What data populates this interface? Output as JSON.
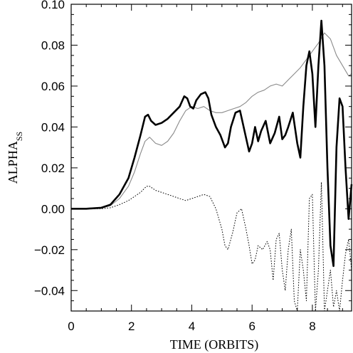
{
  "chart_data": {
    "type": "line",
    "xlabel": "TIME (ORBITS)",
    "ylabel_main": "ALPHA",
    "ylabel_sub": "SS",
    "xlim": [
      0,
      9.3
    ],
    "ylim": [
      -0.05,
      0.1
    ],
    "xticks": [
      0,
      2,
      4,
      6,
      8
    ],
    "xtick_labels": [
      "0",
      "2",
      "4",
      "6",
      "8"
    ],
    "yticks": [
      -0.04,
      -0.02,
      0.0,
      0.02,
      0.04,
      0.06,
      0.08,
      0.1
    ],
    "ytick_labels": [
      "−0.04",
      "−0.02",
      "0.00",
      "0.02",
      "0.04",
      "0.06",
      "0.08",
      "0.10"
    ],
    "grid": false,
    "series": [
      {
        "style": "thick-solid",
        "x": [
          0,
          0.5,
          1.0,
          1.3,
          1.6,
          1.9,
          2.1,
          2.3,
          2.45,
          2.55,
          2.65,
          2.8,
          3.0,
          3.2,
          3.4,
          3.6,
          3.75,
          3.85,
          3.95,
          4.05,
          4.15,
          4.3,
          4.45,
          4.55,
          4.65,
          4.8,
          4.95,
          5.1,
          5.2,
          5.3,
          5.45,
          5.6,
          5.75,
          5.9,
          6.0,
          6.1,
          6.2,
          6.3,
          6.45,
          6.6,
          6.75,
          6.9,
          7.0,
          7.1,
          7.2,
          7.35,
          7.5,
          7.6,
          7.7,
          7.8,
          7.9,
          8.0,
          8.1,
          8.2,
          8.3,
          8.4,
          8.5,
          8.6,
          8.7,
          8.8,
          8.9,
          9.0,
          9.1,
          9.2,
          9.3
        ],
        "y": [
          0.0,
          0.0,
          0.0005,
          0.002,
          0.007,
          0.015,
          0.025,
          0.036,
          0.045,
          0.046,
          0.043,
          0.041,
          0.042,
          0.044,
          0.047,
          0.05,
          0.055,
          0.054,
          0.05,
          0.049,
          0.053,
          0.056,
          0.057,
          0.054,
          0.046,
          0.04,
          0.036,
          0.03,
          0.032,
          0.04,
          0.047,
          0.048,
          0.038,
          0.028,
          0.032,
          0.04,
          0.033,
          0.038,
          0.043,
          0.032,
          0.037,
          0.045,
          0.034,
          0.036,
          0.04,
          0.047,
          0.032,
          0.025,
          0.05,
          0.07,
          0.077,
          0.066,
          0.04,
          0.07,
          0.092,
          0.07,
          0.02,
          -0.018,
          -0.028,
          0.03,
          0.054,
          0.05,
          0.02,
          -0.005,
          0.012
        ]
      },
      {
        "style": "thin-gray",
        "x": [
          0,
          0.5,
          1.0,
          1.3,
          1.6,
          1.9,
          2.1,
          2.3,
          2.45,
          2.6,
          2.8,
          3.0,
          3.2,
          3.4,
          3.6,
          3.8,
          4.0,
          4.2,
          4.4,
          4.6,
          4.8,
          5.0,
          5.2,
          5.4,
          5.6,
          5.8,
          6.0,
          6.2,
          6.4,
          6.6,
          6.8,
          7.0,
          7.2,
          7.4,
          7.6,
          7.8,
          8.0,
          8.2,
          8.4,
          8.6,
          8.8,
          9.0,
          9.2,
          9.3
        ],
        "y": [
          0.0,
          0.0,
          0.0003,
          0.0015,
          0.005,
          0.011,
          0.018,
          0.027,
          0.033,
          0.035,
          0.032,
          0.031,
          0.033,
          0.037,
          0.043,
          0.048,
          0.05,
          0.049,
          0.05,
          0.048,
          0.047,
          0.047,
          0.048,
          0.049,
          0.05,
          0.052,
          0.055,
          0.057,
          0.058,
          0.06,
          0.061,
          0.06,
          0.063,
          0.066,
          0.069,
          0.073,
          0.077,
          0.081,
          0.086,
          0.083,
          0.075,
          0.07,
          0.065,
          0.066
        ]
      },
      {
        "style": "dotted",
        "x": [
          0,
          0.5,
          1.0,
          1.3,
          1.6,
          1.9,
          2.1,
          2.3,
          2.5,
          2.6,
          2.8,
          3.0,
          3.2,
          3.4,
          3.6,
          3.8,
          4.0,
          4.2,
          4.4,
          4.6,
          4.8,
          5.0,
          5.1,
          5.2,
          5.35,
          5.5,
          5.65,
          5.8,
          5.9,
          6.0,
          6.1,
          6.2,
          6.35,
          6.5,
          6.6,
          6.7,
          6.8,
          6.9,
          7.0,
          7.1,
          7.2,
          7.3,
          7.4,
          7.5,
          7.6,
          7.7,
          7.8,
          7.9,
          8.0,
          8.1,
          8.2,
          8.3,
          8.4,
          8.5,
          8.6,
          8.7,
          8.8,
          8.9,
          9.0,
          9.1,
          9.2,
          9.3
        ],
        "y": [
          0.0,
          0.0,
          0.0,
          0.0005,
          0.002,
          0.004,
          0.006,
          0.008,
          0.011,
          0.011,
          0.009,
          0.008,
          0.007,
          0.006,
          0.005,
          0.004,
          0.005,
          0.006,
          0.007,
          0.006,
          0.0,
          -0.01,
          -0.018,
          -0.02,
          -0.012,
          -0.002,
          0.0,
          -0.01,
          -0.018,
          -0.027,
          -0.025,
          -0.018,
          -0.02,
          -0.016,
          -0.02,
          -0.035,
          -0.015,
          -0.012,
          -0.03,
          -0.04,
          -0.02,
          -0.01,
          -0.045,
          -0.05,
          -0.02,
          -0.03,
          -0.045,
          0.005,
          0.007,
          -0.05,
          -0.03,
          0.013,
          -0.05,
          -0.04,
          -0.03,
          -0.048,
          -0.04,
          -0.05,
          -0.035,
          -0.022,
          -0.015,
          -0.03
        ]
      }
    ]
  }
}
